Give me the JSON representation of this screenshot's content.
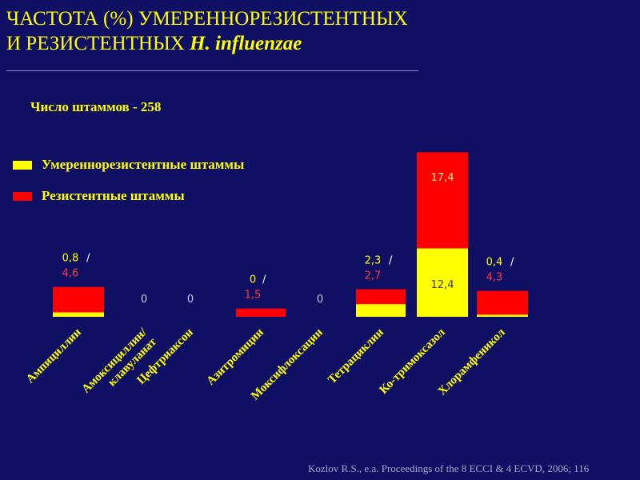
{
  "slide": {
    "title_line1": "ЧАСТОТА (%) УМЕРЕННОРЕЗИСТЕНТНЫХ",
    "title_line2_prefix": "И РЕЗИСТЕНТНЫХ ",
    "title_line2_italic": "H. influenzae",
    "subtitle": "Число штаммов - 258",
    "source": "Kozlov R.S., e.a. Proceedings of the 8 ECCI & 4 ECVD, 2006; 116"
  },
  "colors": {
    "background": "#0f1064",
    "moderate": "#ffff00",
    "resistant": "#ff0000",
    "label_text": "#ffff00",
    "value_text_moderate": "#ffff00",
    "value_text_resistant": "#ff3b3b",
    "zero_text": "#c8c8e0"
  },
  "legend": [
    {
      "label": "Умереннорезистентные штаммы",
      "color": "#ffff00"
    },
    {
      "label": "Резистентные штаммы",
      "color": "#ff0000"
    }
  ],
  "chart_data": {
    "type": "bar",
    "stacked": true,
    "categories": [
      "Ампициллин",
      "Амоксициллин/ клавуланат",
      "Цефтриаксон",
      "Азитромицин",
      "Моксифлоксацин",
      "Тетрациклин",
      "Ко-тримоксазол",
      "Хлорамфеникол"
    ],
    "series": [
      {
        "name": "Умереннорезистентные штаммы",
        "values": [
          0.8,
          0,
          0,
          0,
          0,
          2.3,
          12.4,
          0.4
        ]
      },
      {
        "name": "Резистентные штаммы",
        "values": [
          4.6,
          0,
          0,
          1.5,
          0,
          2.7,
          17.4,
          4.3
        ]
      }
    ],
    "labels": [
      {
        "moderate": "0,8",
        "sep": " /",
        "resistant": "4,6"
      },
      {
        "zero": "0"
      },
      {
        "zero": "0"
      },
      {
        "moderate": "0",
        "sep": " /",
        "resistant": "1,5"
      },
      {
        "zero": "0"
      },
      {
        "moderate": "2,3",
        "sep": " /",
        "resistant": "2,7"
      },
      {
        "moderate_inside": "12,4",
        "resistant_inside": "17,4"
      },
      {
        "moderate": "0,4",
        "sep": " /",
        "resistant": "4,3"
      }
    ],
    "ylim": [
      0,
      30
    ],
    "grid": false,
    "legend_position": "top-left"
  }
}
